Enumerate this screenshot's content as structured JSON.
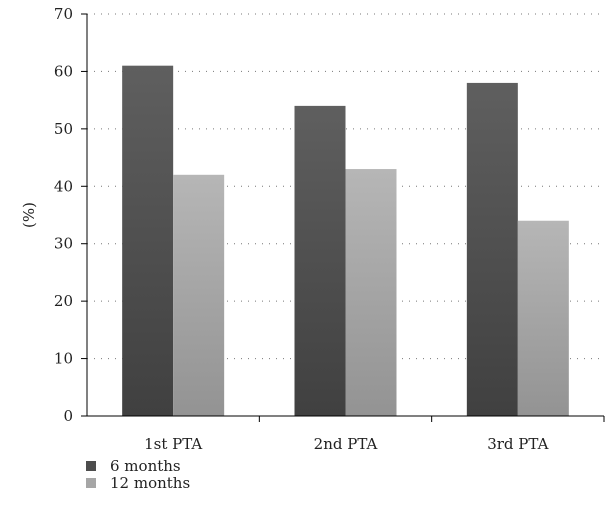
{
  "chart_data": {
    "type": "bar",
    "title": "",
    "xlabel": "",
    "ylabel": "(%)",
    "ylim": [
      0,
      70
    ],
    "yticks": [
      0,
      10,
      20,
      30,
      40,
      50,
      60,
      70
    ],
    "categories": [
      "1st PTA",
      "2nd PTA",
      "3rd PTA"
    ],
    "series": [
      {
        "name": "6 months",
        "values": [
          61,
          54,
          58
        ],
        "color": "#4d4d4d"
      },
      {
        "name": "12 months",
        "values": [
          42,
          43,
          34
        ],
        "color": "#a6a6a6"
      }
    ],
    "grid": "horizontal dotted",
    "legend": "bottom-left"
  }
}
